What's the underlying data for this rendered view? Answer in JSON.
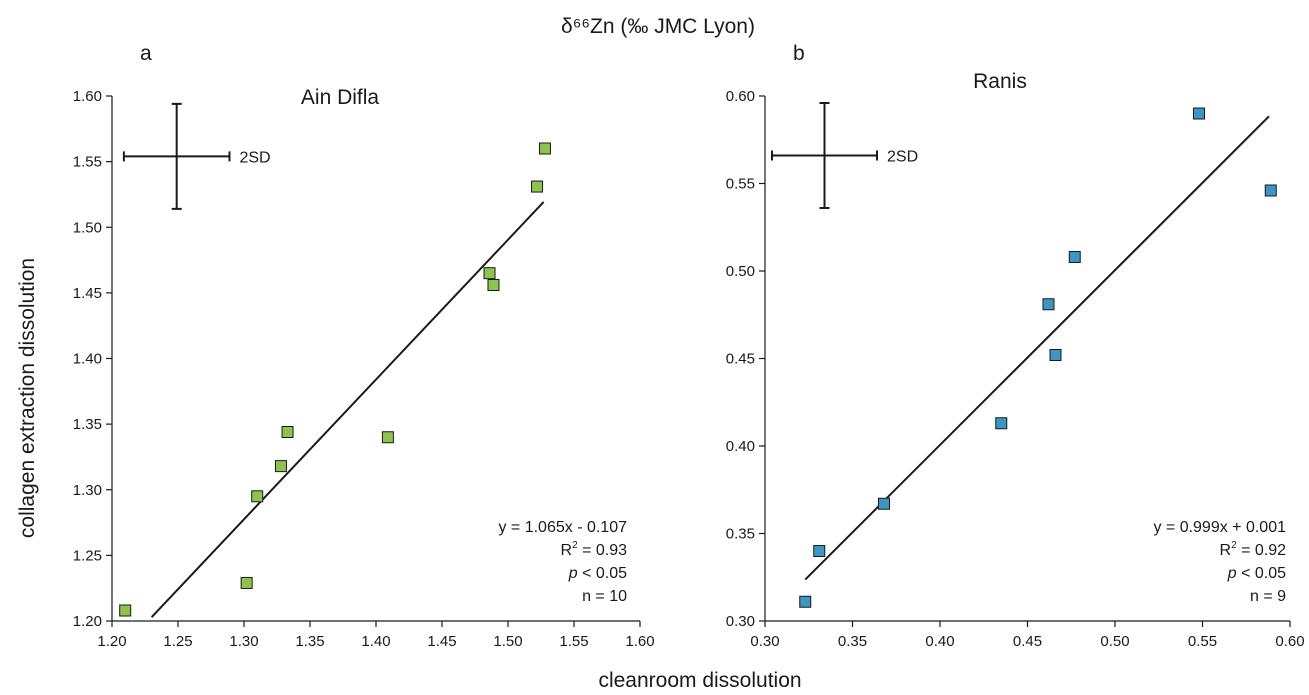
{
  "figure": {
    "top_label": "δ⁶⁶Zn (‰ JMC Lyon)",
    "xlabel": "cleanroom dissolution",
    "ylabel": "collagen extraction dissolution"
  },
  "chart_data": [
    {
      "type": "scatter",
      "panel_letter": "a",
      "title": "Ain Difla",
      "xlim": [
        1.2,
        1.6
      ],
      "ylim": [
        1.2,
        1.6
      ],
      "x_ticks": [
        "1.20",
        "1.25",
        "1.30",
        "1.35",
        "1.40",
        "1.45",
        "1.50",
        "1.55",
        "1.60"
      ],
      "y_ticks": [
        "1.20",
        "1.25",
        "1.30",
        "1.35",
        "1.40",
        "1.45",
        "1.50",
        "1.55",
        "1.60"
      ],
      "marker_color": "#8dc44e",
      "points": [
        {
          "x": 1.21,
          "y": 1.208
        },
        {
          "x": 1.302,
          "y": 1.229
        },
        {
          "x": 1.31,
          "y": 1.295
        },
        {
          "x": 1.328,
          "y": 1.318
        },
        {
          "x": 1.333,
          "y": 1.344
        },
        {
          "x": 1.409,
          "y": 1.34
        },
        {
          "x": 1.486,
          "y": 1.465
        },
        {
          "x": 1.489,
          "y": 1.456
        },
        {
          "x": 1.522,
          "y": 1.531
        },
        {
          "x": 1.528,
          "y": 1.56
        }
      ],
      "fit": {
        "slope": 1.065,
        "intercept": -0.107,
        "x_range": [
          1.23,
          1.527
        ]
      },
      "error_bar": {
        "label": "2SD",
        "center": [
          1.249,
          1.554
        ],
        "x_half": 0.04,
        "y_half": 0.04
      },
      "stats": {
        "equation": "y = 1.065x - 0.107",
        "r2_prefix": "R",
        "r2_sup": "2",
        "r2_suffix": " = 0.93",
        "p_italic": "p",
        "p_suffix": " < 0.05",
        "n": "n = 10"
      }
    },
    {
      "type": "scatter",
      "panel_letter": "b",
      "title": "Ranis",
      "xlim": [
        0.3,
        0.6
      ],
      "ylim": [
        0.3,
        0.6
      ],
      "x_ticks": [
        "0.30",
        "0.35",
        "0.40",
        "0.45",
        "0.50",
        "0.55",
        "0.60"
      ],
      "y_ticks": [
        "0.30",
        "0.35",
        "0.40",
        "0.45",
        "0.50",
        "0.55",
        "0.60"
      ],
      "marker_color": "#3d95c2",
      "points": [
        {
          "x": 0.323,
          "y": 0.311
        },
        {
          "x": 0.331,
          "y": 0.34
        },
        {
          "x": 0.368,
          "y": 0.367
        },
        {
          "x": 0.435,
          "y": 0.413
        },
        {
          "x": 0.462,
          "y": 0.481
        },
        {
          "x": 0.466,
          "y": 0.452
        },
        {
          "x": 0.477,
          "y": 0.508
        },
        {
          "x": 0.548,
          "y": 0.59
        },
        {
          "x": 0.589,
          "y": 0.546
        }
      ],
      "fit": {
        "slope": 0.999,
        "intercept": 0.001,
        "x_range": [
          0.323,
          0.588
        ]
      },
      "error_bar": {
        "label": "2SD",
        "center": [
          0.334,
          0.566
        ],
        "x_half": 0.03,
        "y_half": 0.03
      },
      "stats": {
        "equation": "y = 0.999x + 0.001",
        "r2_prefix": "R",
        "r2_sup": "2",
        "r2_suffix": " = 0.92",
        "p_italic": "p",
        "p_suffix": " < 0.05",
        "n": "n = 9"
      }
    }
  ]
}
